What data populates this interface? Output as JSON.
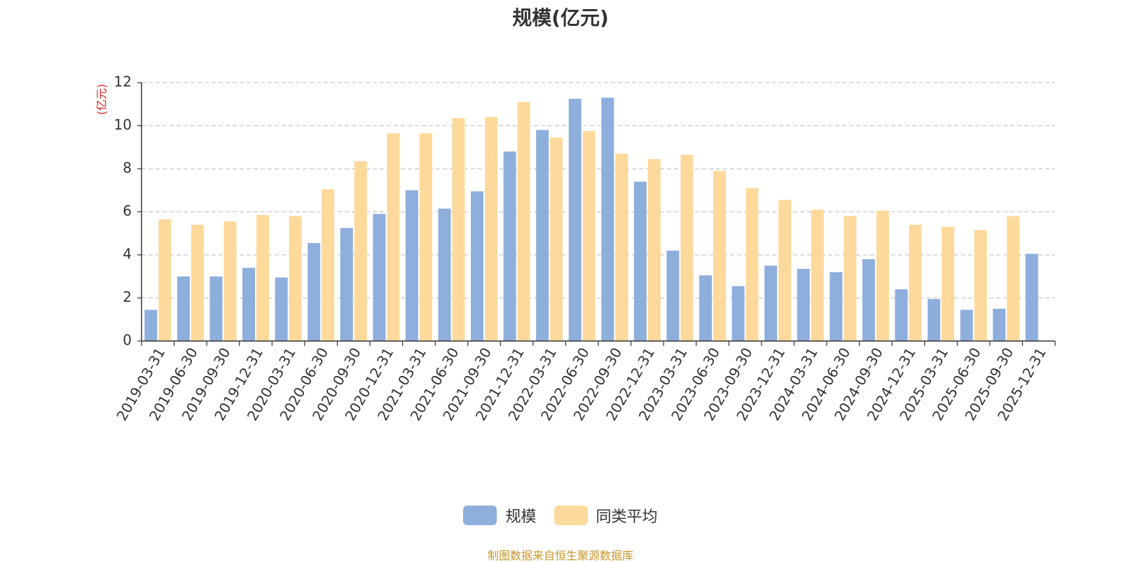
{
  "chart_data": {
    "type": "bar",
    "title": "规模(亿元)",
    "ylabel": "(亿元)",
    "xlabel": "",
    "ylim": [
      0,
      12
    ],
    "yticks": [
      0,
      2,
      4,
      6,
      8,
      10,
      12
    ],
    "grid": true,
    "legend_position": "bottom",
    "categories": [
      "2019-03-31",
      "2019-06-30",
      "2019-09-30",
      "2019-12-31",
      "2020-03-31",
      "2020-06-30",
      "2020-09-30",
      "2020-12-31",
      "2021-03-31",
      "2021-06-30",
      "2021-09-30",
      "2021-12-31",
      "2022-03-31",
      "2022-06-30",
      "2022-09-30",
      "2022-12-31",
      "2023-03-31",
      "2023-06-30",
      "2023-09-30",
      "2023-12-31",
      "2024-03-31",
      "2024-06-30",
      "2024-09-30",
      "2024-12-31",
      "2025-03-31",
      "2025-06-30",
      "2025-09-30",
      "2025-12-31"
    ],
    "series": [
      {
        "name": "规模",
        "color": "#8eaedc",
        "values": [
          1.45,
          3.0,
          3.0,
          3.4,
          2.95,
          4.55,
          5.25,
          5.9,
          7.0,
          6.15,
          6.95,
          8.8,
          9.8,
          11.25,
          11.3,
          7.4,
          4.2,
          3.05,
          2.55,
          3.5,
          3.35,
          3.2,
          3.8,
          2.4,
          1.95,
          1.45,
          1.5,
          4.05
        ]
      },
      {
        "name": "同类平均",
        "color": "#fdd99b",
        "values": [
          5.65,
          5.4,
          5.55,
          5.85,
          5.8,
          7.05,
          8.35,
          9.65,
          9.65,
          10.35,
          10.4,
          11.1,
          9.45,
          9.75,
          8.7,
          8.45,
          8.65,
          7.9,
          7.1,
          6.55,
          6.1,
          5.8,
          6.05,
          5.4,
          5.3,
          5.15,
          5.8,
          null
        ]
      }
    ]
  },
  "footer": {
    "source": "制图数据来自恒生聚源数据库"
  }
}
